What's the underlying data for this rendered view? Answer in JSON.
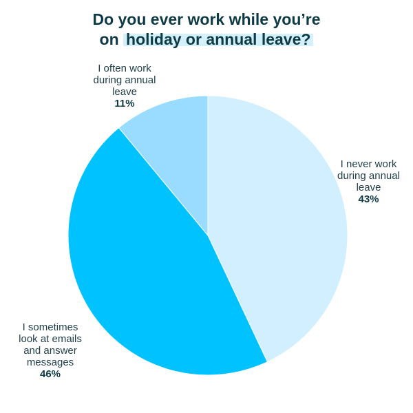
{
  "chart_data": {
    "type": "pie",
    "title_line1": "Do you ever work while you’re",
    "title_line2_prefix": "on",
    "title_line2_highlight": "holiday or annual leave?",
    "slices": [
      {
        "label": "I never work\nduring annual\nleave",
        "value": 43,
        "display": "43%",
        "color": "#d1efff"
      },
      {
        "label": "I sometimes\nlook at emails\nand answer\nmessages",
        "value": 46,
        "display": "46%",
        "color": "#00c2ff"
      },
      {
        "label": "I often work\nduring annual\nleave",
        "value": 11,
        "display": "11%",
        "color": "#99dcff"
      }
    ]
  }
}
